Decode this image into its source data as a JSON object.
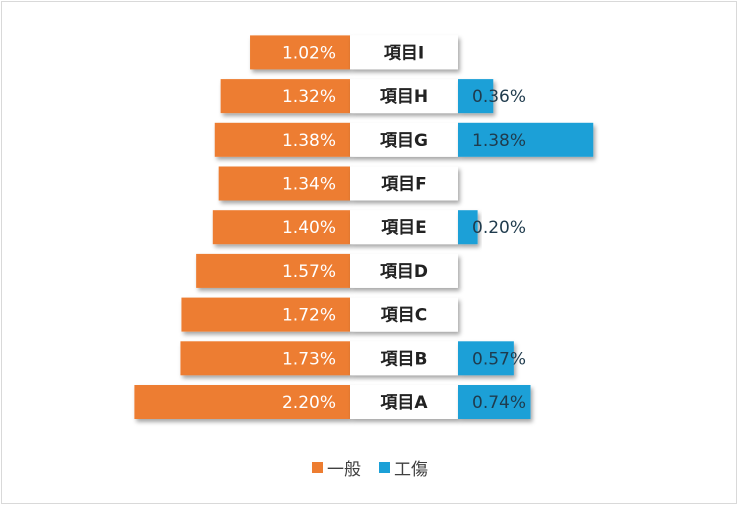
{
  "chart_data": {
    "type": "bar",
    "categories": [
      "項目A",
      "項目B",
      "項目C",
      "項目D",
      "項目E",
      "項目F",
      "項目G",
      "項目H",
      "項目I"
    ],
    "series": [
      {
        "name": "一般",
        "color": "#ED7D31",
        "values": [
          2.2,
          1.73,
          1.72,
          1.57,
          1.4,
          1.34,
          1.38,
          1.32,
          1.02
        ],
        "labels": [
          "2.20%",
          "1.73%",
          "1.72%",
          "1.57%",
          "1.40%",
          "1.34%",
          "1.38%",
          "1.32%",
          "1.02%"
        ]
      },
      {
        "name": "工傷",
        "color": "#1BA0D7",
        "values": [
          0.74,
          0.57,
          null,
          null,
          0.2,
          null,
          1.38,
          0.36,
          null
        ],
        "labels": [
          "0.74%",
          "0.57%",
          "",
          "",
          "0.20%",
          "",
          "1.38%",
          "0.36%",
          ""
        ]
      }
    ],
    "orientation": "horizontal-butterfly",
    "grid": false,
    "legend_position": "bottom"
  }
}
